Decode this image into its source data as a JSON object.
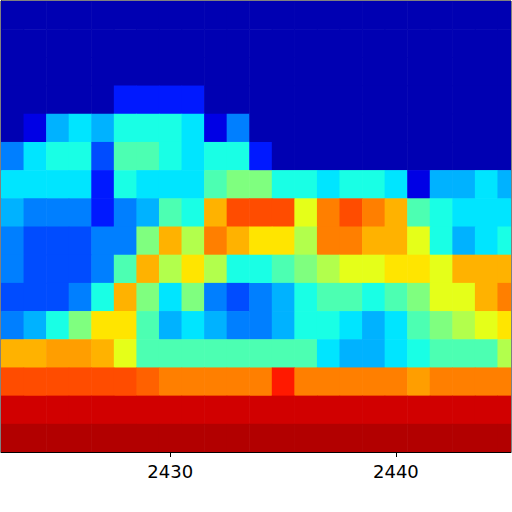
{
  "chart_data": {
    "type": "heatmap",
    "x": [
      2423,
      2424,
      2425,
      2426,
      2427,
      2428,
      2429,
      2430,
      2431,
      2432,
      2433,
      2434,
      2435,
      2436,
      2437,
      2438,
      2439,
      2440,
      2441,
      2442,
      2443,
      2444,
      2445
    ],
    "y": [
      15.5,
      14.5,
      13.5,
      12.5,
      11.5,
      10.5,
      9.5,
      8.5,
      7.5,
      6.5,
      5.5,
      4.5,
      3.5,
      2.5,
      1.5,
      0.5
    ],
    "values": [
      [
        5,
        5,
        5,
        5,
        5,
        5,
        5,
        5,
        5,
        5,
        5,
        5,
        5,
        5,
        5,
        5,
        5,
        5,
        5,
        5,
        5,
        5,
        5
      ],
      [
        5,
        5,
        5,
        5,
        5,
        5,
        5,
        5,
        5,
        5,
        5,
        5,
        5,
        5,
        5,
        5,
        5,
        5,
        5,
        5,
        5,
        5,
        5
      ],
      [
        5,
        5,
        5,
        5,
        5,
        5,
        5,
        5,
        5,
        5,
        5,
        5,
        5,
        5,
        5,
        5,
        5,
        5,
        5,
        5,
        5,
        5,
        5
      ],
      [
        5,
        5,
        5,
        5,
        5,
        15,
        15,
        15,
        15,
        5,
        5,
        5,
        5,
        5,
        5,
        5,
        5,
        5,
        5,
        5,
        5,
        5,
        5
      ],
      [
        5,
        10,
        30,
        35,
        30,
        40,
        40,
        40,
        35,
        10,
        25,
        5,
        5,
        5,
        5,
        5,
        5,
        5,
        5,
        5,
        5,
        5,
        5
      ],
      [
        25,
        35,
        40,
        40,
        20,
        45,
        45,
        40,
        35,
        40,
        40,
        15,
        5,
        5,
        5,
        5,
        5,
        5,
        5,
        5,
        5,
        5,
        5
      ],
      [
        35,
        35,
        35,
        35,
        15,
        40,
        35,
        35,
        35,
        45,
        50,
        50,
        40,
        40,
        35,
        40,
        40,
        35,
        10,
        30,
        30,
        35,
        30
      ],
      [
        30,
        25,
        25,
        25,
        15,
        25,
        30,
        45,
        40,
        70,
        80,
        80,
        80,
        60,
        75,
        80,
        75,
        70,
        45,
        40,
        35,
        35,
        35
      ],
      [
        25,
        20,
        20,
        20,
        25,
        25,
        50,
        70,
        55,
        75,
        70,
        65,
        65,
        55,
        75,
        75,
        70,
        70,
        60,
        40,
        30,
        35,
        40
      ],
      [
        25,
        20,
        20,
        20,
        25,
        45,
        70,
        55,
        65,
        55,
        40,
        40,
        45,
        50,
        55,
        60,
        60,
        65,
        65,
        60,
        70,
        70,
        70
      ],
      [
        20,
        20,
        20,
        25,
        40,
        70,
        50,
        35,
        50,
        25,
        20,
        25,
        30,
        40,
        45,
        45,
        40,
        45,
        50,
        60,
        60,
        70,
        75
      ],
      [
        25,
        30,
        40,
        50,
        65,
        65,
        45,
        30,
        35,
        30,
        25,
        25,
        30,
        40,
        40,
        35,
        30,
        35,
        45,
        50,
        55,
        60,
        65
      ],
      [
        70,
        70,
        72,
        72,
        70,
        60,
        45,
        45,
        45,
        45,
        45,
        45,
        45,
        45,
        35,
        30,
        30,
        35,
        40,
        45,
        45,
        45,
        55
      ],
      [
        80,
        80,
        80,
        80,
        80,
        80,
        78,
        75,
        75,
        75,
        75,
        75,
        85,
        75,
        75,
        75,
        75,
        75,
        72,
        75,
        75,
        75,
        75
      ],
      [
        92,
        92,
        92,
        92,
        92,
        92,
        92,
        92,
        92,
        92,
        92,
        92,
        92,
        92,
        92,
        92,
        92,
        92,
        92,
        92,
        92,
        92,
        92
      ],
      [
        95,
        95,
        95,
        95,
        95,
        95,
        95,
        95,
        95,
        95,
        95,
        95,
        95,
        95,
        95,
        95,
        95,
        95,
        95,
        95,
        95,
        95,
        95
      ]
    ],
    "xlim": [
      2422.5,
      2445.1
    ],
    "xticks": [
      2430,
      2440
    ],
    "ylim": [
      0,
      16
    ],
    "zlim": [
      0,
      100
    ],
    "tick_labels": "x"
  }
}
